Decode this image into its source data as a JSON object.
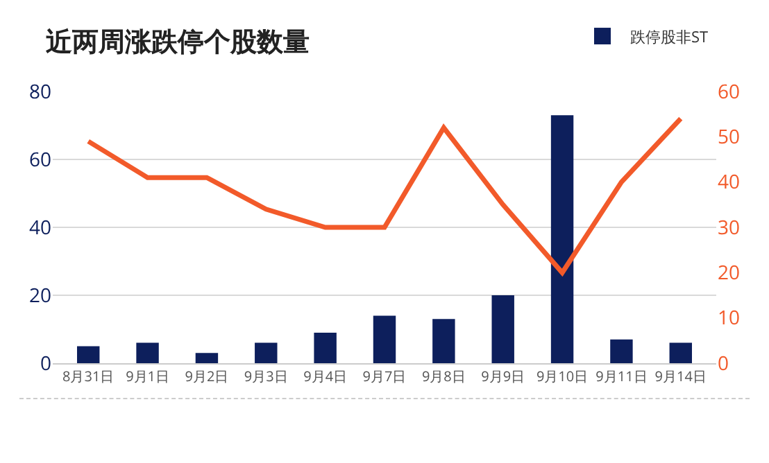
{
  "chart_data": {
    "type": "bar",
    "title": "近两周涨跌停个股数量",
    "categories": [
      "8月31日",
      "9月1日",
      "9月2日",
      "9月3日",
      "9月4日",
      "9月7日",
      "9月8日",
      "9月9日",
      "9月10日",
      "9月11日",
      "9月14日"
    ],
    "series": [
      {
        "name": "跌停股非ST",
        "color": "#0d1f5c",
        "values": [
          5,
          6,
          3,
          6,
          9,
          14,
          13,
          20,
          73,
          7,
          6
        ]
      },
      {
        "type": "line",
        "axis": "y2",
        "color": "#f25a2a",
        "values": [
          49,
          41,
          41,
          34,
          30,
          30,
          52,
          35,
          20,
          40,
          54
        ]
      }
    ],
    "ylim": [
      0,
      80
    ],
    "yticks": [
      0,
      20,
      40,
      60,
      80
    ],
    "y2lim": [
      0,
      60
    ],
    "y2ticks": [
      0,
      10,
      20,
      30,
      40,
      50,
      60
    ],
    "grid": "y",
    "legend": "top right",
    "marker": "none",
    "line_style": "solid"
  }
}
